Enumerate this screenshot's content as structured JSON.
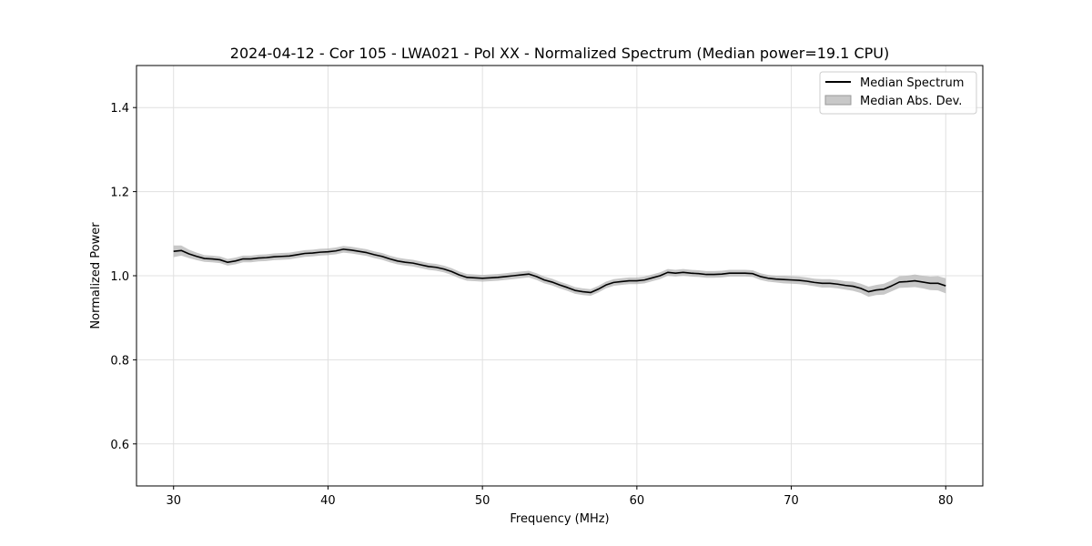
{
  "chart_data": {
    "type": "line",
    "title": "2024-04-12 - Cor 105 - LWA021 - Pol XX - Normalized Spectrum (Median power=19.1 CPU)",
    "xlabel": "Frequency (MHz)",
    "ylabel": "Normalized Power",
    "xlim": [
      27.6,
      82.4
    ],
    "ylim": [
      0.5,
      1.5
    ],
    "x_ticks": [
      30,
      40,
      50,
      60,
      70,
      80
    ],
    "x_tick_labels": [
      "30",
      "40",
      "50",
      "60",
      "70",
      "80"
    ],
    "y_ticks": [
      0.6,
      0.8,
      1.0,
      1.2,
      1.4
    ],
    "y_tick_labels": [
      "0.6",
      "0.8",
      "1.0",
      "1.2",
      "1.4"
    ],
    "grid": true,
    "legend": {
      "location": "top-right",
      "entries": [
        "Median Spectrum",
        "Median Abs. Dev."
      ]
    },
    "colors": {
      "line": "#000000",
      "band": "#b0b0b0",
      "grid": "#e0e0e0"
    },
    "series": [
      {
        "name": "Median Spectrum",
        "x": [
          30,
          30.5,
          31,
          31.5,
          32,
          32.5,
          33,
          33.5,
          34,
          34.5,
          35,
          35.5,
          36,
          36.5,
          37,
          37.5,
          38,
          38.5,
          39,
          39.5,
          40,
          40.5,
          41,
          41.5,
          42,
          42.5,
          43,
          43.5,
          44,
          44.5,
          45,
          45.5,
          46,
          46.5,
          47,
          47.5,
          48,
          48.5,
          49,
          49.5,
          50,
          50.5,
          51,
          51.5,
          52,
          52.5,
          53,
          53.5,
          54,
          54.5,
          55,
          55.5,
          56,
          56.5,
          57,
          57.5,
          58,
          58.5,
          59,
          59.5,
          60,
          60.5,
          61,
          61.5,
          62,
          62.5,
          63,
          63.5,
          64,
          64.5,
          65,
          65.5,
          66,
          66.5,
          67,
          67.5,
          68,
          68.5,
          69,
          69.5,
          70,
          70.5,
          71,
          71.5,
          72,
          72.5,
          73,
          73.5,
          74,
          74.5,
          75,
          75.5,
          76,
          76.5,
          77,
          77.5,
          78,
          78.5,
          79,
          79.5,
          80
        ],
        "values": [
          1.058,
          1.06,
          1.052,
          1.046,
          1.041,
          1.04,
          1.038,
          1.032,
          1.035,
          1.04,
          1.04,
          1.042,
          1.043,
          1.045,
          1.046,
          1.047,
          1.05,
          1.053,
          1.054,
          1.056,
          1.057,
          1.059,
          1.063,
          1.061,
          1.058,
          1.055,
          1.05,
          1.046,
          1.04,
          1.035,
          1.032,
          1.03,
          1.026,
          1.022,
          1.02,
          1.016,
          1.01,
          1.002,
          0.996,
          0.995,
          0.994,
          0.995,
          0.996,
          0.998,
          1.0,
          1.002,
          1.004,
          0.998,
          0.99,
          0.985,
          0.978,
          0.972,
          0.965,
          0.962,
          0.96,
          0.968,
          0.978,
          0.984,
          0.986,
          0.988,
          0.988,
          0.99,
          0.995,
          1.0,
          1.008,
          1.006,
          1.008,
          1.006,
          1.005,
          1.003,
          1.003,
          1.004,
          1.006,
          1.006,
          1.006,
          1.005,
          0.998,
          0.994,
          0.992,
          0.991,
          0.99,
          0.989,
          0.987,
          0.984,
          0.982,
          0.982,
          0.98,
          0.977,
          0.975,
          0.97,
          0.962,
          0.966,
          0.968,
          0.976,
          0.985,
          0.986,
          0.988,
          0.985,
          0.982,
          0.982,
          0.976
        ],
        "mad": [
          0.014,
          0.012,
          0.01,
          0.009,
          0.008,
          0.008,
          0.008,
          0.008,
          0.008,
          0.008,
          0.008,
          0.008,
          0.008,
          0.008,
          0.008,
          0.008,
          0.008,
          0.008,
          0.008,
          0.008,
          0.008,
          0.008,
          0.008,
          0.008,
          0.008,
          0.008,
          0.008,
          0.008,
          0.008,
          0.008,
          0.008,
          0.008,
          0.008,
          0.008,
          0.008,
          0.008,
          0.008,
          0.008,
          0.008,
          0.008,
          0.008,
          0.008,
          0.008,
          0.008,
          0.008,
          0.008,
          0.008,
          0.008,
          0.008,
          0.008,
          0.008,
          0.008,
          0.008,
          0.008,
          0.008,
          0.008,
          0.008,
          0.008,
          0.008,
          0.008,
          0.008,
          0.008,
          0.008,
          0.008,
          0.008,
          0.008,
          0.008,
          0.008,
          0.008,
          0.008,
          0.008,
          0.008,
          0.008,
          0.008,
          0.008,
          0.008,
          0.008,
          0.008,
          0.008,
          0.009,
          0.009,
          0.009,
          0.009,
          0.009,
          0.01,
          0.01,
          0.01,
          0.01,
          0.011,
          0.011,
          0.012,
          0.012,
          0.013,
          0.013,
          0.014,
          0.014,
          0.015,
          0.015,
          0.016,
          0.017,
          0.018
        ]
      }
    ]
  }
}
